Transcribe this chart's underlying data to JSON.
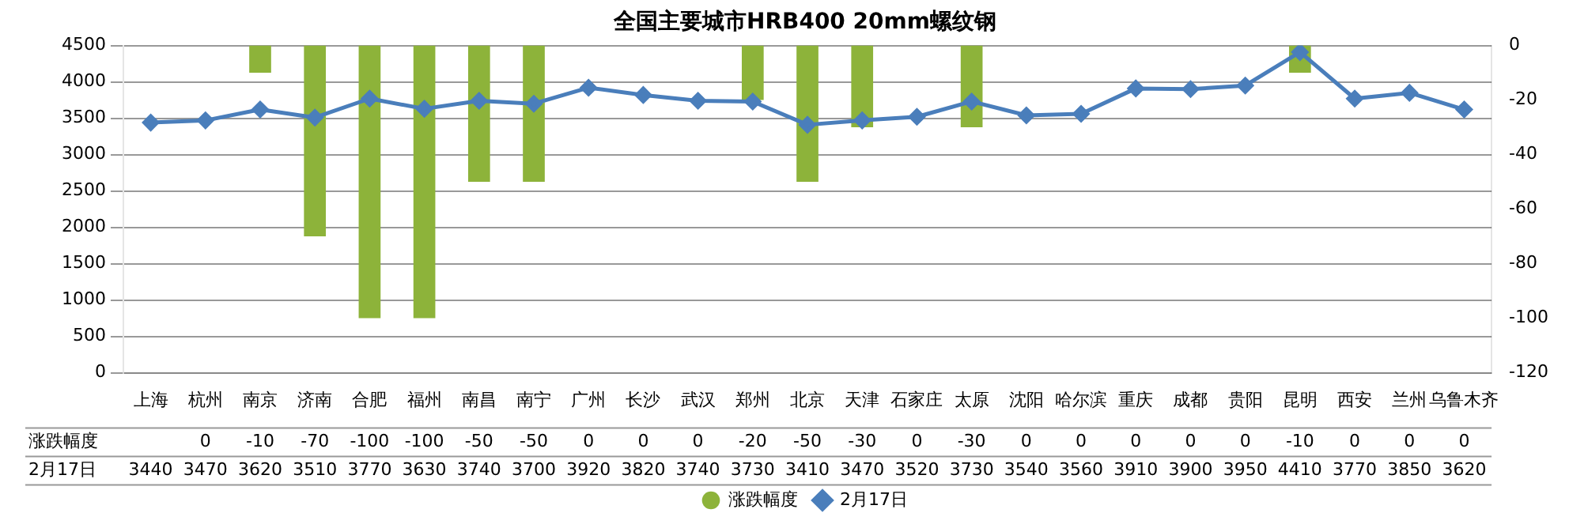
{
  "chart_data": {
    "type": "bar",
    "title": "全国主要城市HRB400 20mm螺纹钢",
    "categories": [
      "上海",
      "杭州",
      "南京",
      "济南",
      "合肥",
      "福州",
      "南昌",
      "南宁",
      "广州",
      "长沙",
      "武汉",
      "郑州",
      "北京",
      "天津",
      "石家庄",
      "太原",
      "沈阳",
      "哈尔滨",
      "重庆",
      "成都",
      "贵阳",
      "昆明",
      "西安",
      "兰州",
      "乌鲁木齐"
    ],
    "series": [
      {
        "name": "涨跌幅度",
        "axis": "y2",
        "color": "#8db33a",
        "values": [
          null,
          0,
          -10,
          -70,
          -100,
          -100,
          -50,
          -50,
          0,
          0,
          0,
          -20,
          -50,
          -30,
          0,
          -30,
          0,
          0,
          0,
          0,
          0,
          -10,
          0,
          0,
          0
        ]
      },
      {
        "name": "2月17日",
        "type": "line",
        "color": "#4a7ebb",
        "values": [
          3440,
          3470,
          3620,
          3510,
          3770,
          3630,
          3740,
          3700,
          3920,
          3820,
          3740,
          3730,
          3410,
          3470,
          3520,
          3730,
          3540,
          3560,
          3910,
          3900,
          3950,
          4410,
          3770,
          3850,
          3620
        ]
      }
    ],
    "ylim": [
      0,
      4500
    ],
    "yticks": [
      0,
      500,
      1000,
      1500,
      2000,
      2500,
      3000,
      3500,
      4000,
      4500
    ],
    "y2lim": [
      -120,
      0
    ],
    "y2ticks": [
      -120,
      -100,
      -80,
      -60,
      -40,
      -20,
      0
    ],
    "grid": "y",
    "legend": "bottom",
    "marker": "diamond",
    "data_labels": true
  }
}
